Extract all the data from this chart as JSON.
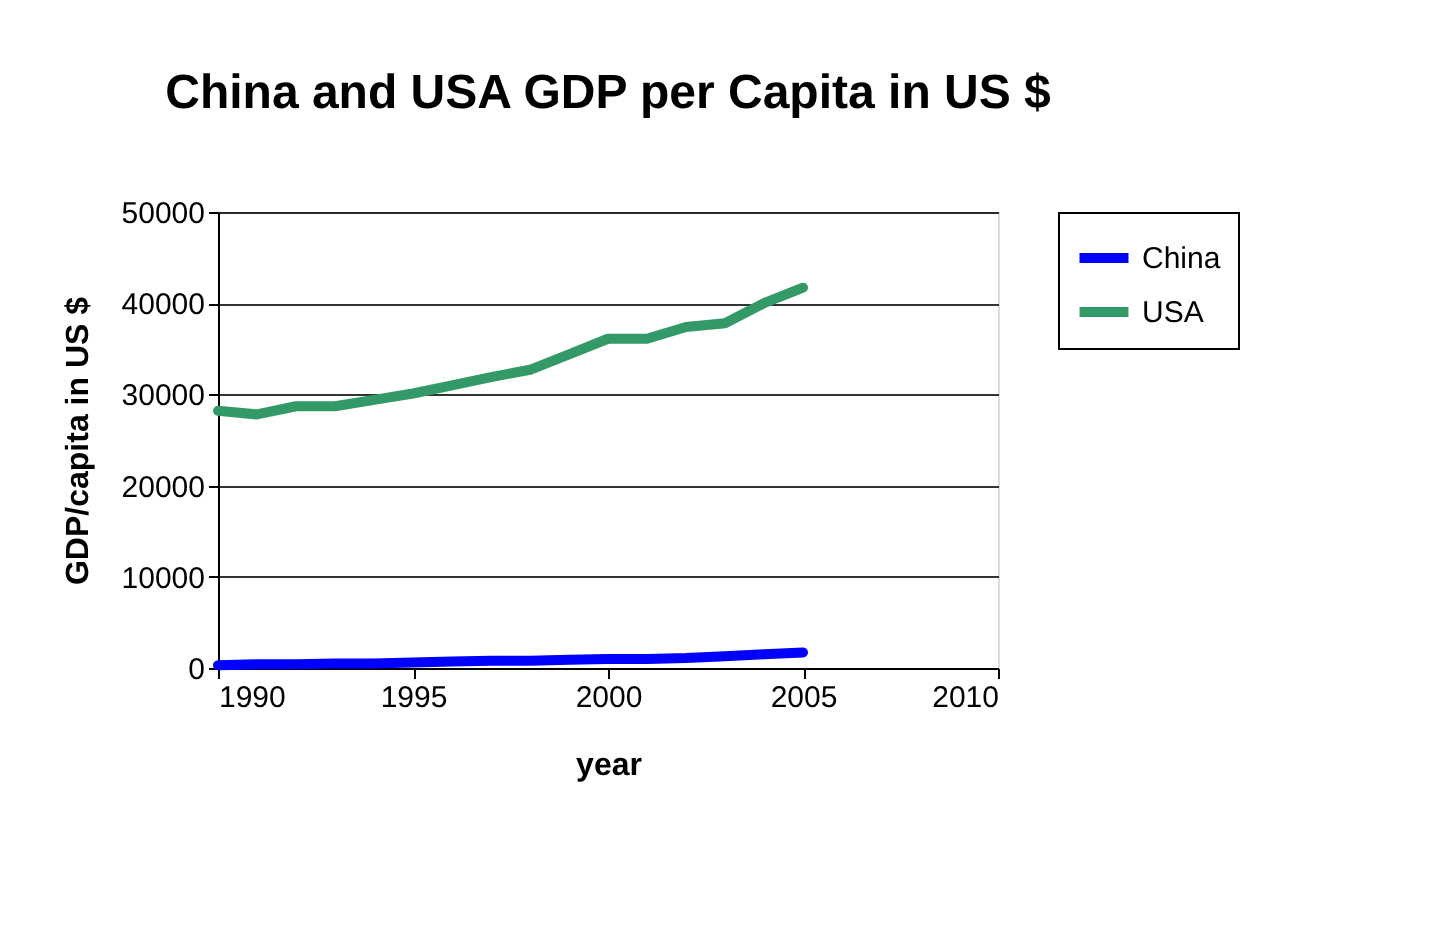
{
  "chart_data": {
    "type": "line",
    "title": "China and USA GDP per Capita in US $",
    "xlabel": "year",
    "ylabel": "GDP/capita in US $",
    "x": [
      1990,
      1991,
      1992,
      1993,
      1994,
      1995,
      1996,
      1997,
      1998,
      1999,
      2000,
      2001,
      2002,
      2003,
      2004,
      2005
    ],
    "series": [
      {
        "name": "China",
        "color": "#0000ff",
        "values": [
          300,
          400,
          400,
          500,
          500,
          600,
          700,
          800,
          800,
          900,
          1000,
          1000,
          1100,
          1300,
          1500,
          1700
        ]
      },
      {
        "name": "USA",
        "color": "#339966",
        "values": [
          28200,
          27800,
          28700,
          28700,
          29400,
          30100,
          31000,
          31900,
          32700,
          34400,
          36100,
          36100,
          37400,
          37800,
          40000,
          41700
        ]
      }
    ],
    "xlim": [
      1990,
      2010
    ],
    "xticks": [
      1990,
      1995,
      2000,
      2005,
      2010
    ],
    "ylim": [
      0,
      50000
    ],
    "yticks": [
      0,
      10000,
      20000,
      30000,
      40000,
      50000
    ],
    "grid": "y",
    "legend": "right",
    "marker": "none",
    "line_style": "solid"
  }
}
